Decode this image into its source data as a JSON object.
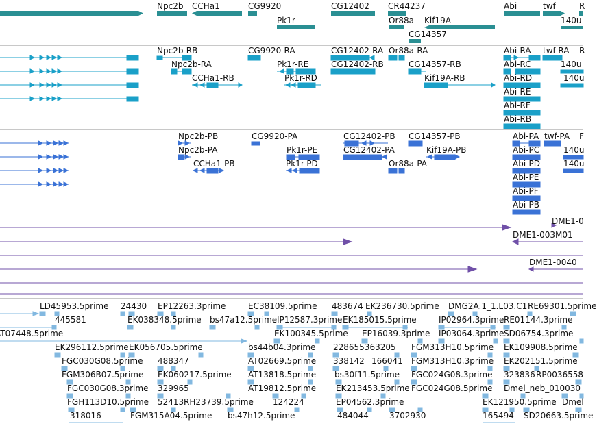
{
  "colors": {
    "gene": "#2a8f93",
    "mrna": "#1aa0c8",
    "protein": "#3a72d6",
    "est": "#7050a8",
    "clone": "#82b8e0",
    "separator": "#c8c8c8"
  },
  "tracks": {
    "genes": {
      "labels": [
        "Npc2b",
        "CCHa1",
        "CG9920",
        "CG12402",
        "CR44237",
        "Pk1r",
        "Or88a",
        "Kif19A",
        "CG14357",
        "Abi",
        "twf",
        "R",
        "140u"
      ]
    },
    "transcripts": {
      "labels": [
        "Npc2b-RB",
        "CG9920-RA",
        "CG12402-RA",
        "Or88a-RA",
        "Abi-RA",
        "twf-RA",
        "R",
        "Npc2b-RA",
        "Pk1r-RE",
        "CG12402-RB",
        "CG14357-RB",
        "Abi-RC",
        "140u",
        "CCHa1-RB",
        "Pk1r-RD",
        "Kif19A-RB",
        "Abi-RD",
        "140u",
        "Abi-RE",
        "Abi-RF",
        "Abi-RB"
      ]
    },
    "proteins": {
      "labels": [
        "Npc2b-PB",
        "CG9920-PA",
        "CG12402-PB",
        "CG14357-PB",
        "Abi-PA",
        "twf-PA",
        "F",
        "Npc2b-PA",
        "Pk1r-PE",
        "CG12402-PA",
        "Kif19A-PB",
        "Abi-PC",
        "140u",
        "CCHa1-PB",
        "Pk1r-PD",
        "Or88a-PA",
        "Abi-PD",
        "140u",
        "Abi-PE",
        "Abi-PF",
        "Abi-PB"
      ]
    },
    "est_alignments": {
      "labels": [
        "DME1-0",
        "DME1-003M01",
        "DME1-0040"
      ]
    },
    "cdna_clones": {
      "labels": [
        "LD45953.5prime",
        "24430",
        "EP12263.3prime",
        "EC38109.5prime",
        "483674",
        "EK236730.5prime",
        "DMG2A.1_1.L03.C1",
        "RE69301.5prime",
        "445581",
        "EK038348.5prime",
        "bs47a12.5prime",
        "IP12587.3prime",
        "EK185015.5prime",
        "IP02964.3prime",
        "RE01144.3prime",
        "AT07448.5prime",
        "EK100345.5prime",
        "EP16039.3prime",
        "IP03064.3prime",
        "SD06754.3prime",
        "EK296112.5prime",
        "EK056705.5prime",
        "bs44b04.3prime",
        "228655363205",
        "FGM313H10.5prime",
        "EK109908.5prime",
        "FGC030G08.5prime",
        "488347",
        "AT02669.5prime",
        "338142",
        "166041",
        "FGM313H10.3prime",
        "EK202151.5prime",
        "FGM306B07.5prime",
        "EK060217.5prime",
        "AT13818.5prime",
        "bs30f11.5prime",
        "FGC024G08.3prime",
        "323836",
        "RP0036558",
        "FGC030G08.3prime",
        "329965",
        "AT19812.5prime",
        "EK213453.5prime",
        "FGC024G08.5prime",
        "Dmel_neb_010030",
        "FGH113D10.5prime",
        "52413",
        "RH23739.5prime",
        "124224",
        "EP04562.3prime",
        "EK121950.5prime",
        "Dmel",
        "318016",
        "FGM315A04.5prime",
        "bs47h12.5prime",
        "484044",
        "3702930",
        "165494",
        "SD20663.5prime"
      ]
    }
  }
}
